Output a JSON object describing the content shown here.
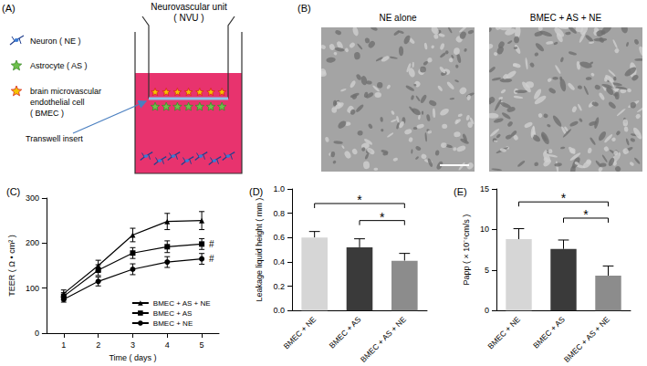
{
  "panel_a": {
    "label": "(A)",
    "title": [
      "Neurovascular unit",
      "( NVU )"
    ],
    "key": [
      {
        "icon": "neuron",
        "text": [
          "Neuron ( NE )"
        ]
      },
      {
        "icon": "astrocyte",
        "text": [
          "Astrocyte ( AS )"
        ]
      },
      {
        "icon": "bmec",
        "text": [
          "brain microvascular",
          "endothelial cell",
          "( BMEC )"
        ]
      }
    ],
    "insert_label": "Transwell insert"
  },
  "panel_b": {
    "label": "(B)",
    "images": [
      "NE alone",
      "BMEC + AS + NE"
    ]
  },
  "chart_data": [
    {
      "type": "line",
      "title": "(C)",
      "x_label": "Time ( days )",
      "y_label": "TEER ( Ω • cm² )",
      "categories": [
        "1",
        "2",
        "3",
        "4",
        "5"
      ],
      "series": [
        {
          "name": "BMEC + AS + NE",
          "marker": "triangle",
          "color": "#000000",
          "values": [
            88,
            150,
            218,
            248,
            250
          ],
          "errors": [
            8,
            12,
            15,
            18,
            20
          ]
        },
        {
          "name": "BMEC + AS",
          "marker": "square",
          "color": "#000000",
          "values": [
            82,
            140,
            178,
            192,
            198
          ],
          "errors": [
            8,
            12,
            12,
            13,
            12
          ]
        },
        {
          "name": "BMEC + NE",
          "marker": "circle",
          "color": "#000000",
          "values": [
            75,
            115,
            142,
            158,
            165
          ],
          "errors": [
            6,
            10,
            12,
            12,
            12
          ]
        }
      ],
      "ylim": [
        0,
        300
      ],
      "yticks": [
        0,
        100,
        200,
        300
      ],
      "grid": false,
      "legend": "lower right",
      "annotations": [
        {
          "text": "#",
          "series": "BMEC + AS",
          "category": "5"
        },
        {
          "text": "#",
          "series": "BMEC + NE",
          "category": "5"
        }
      ]
    },
    {
      "type": "bar",
      "title": "(D)",
      "y_label": "Leakage liquid height ( mm )",
      "categories": [
        "BMEC + NE",
        "BMEC + AS",
        "BMEC + AS + NE"
      ],
      "values": [
        0.6,
        0.52,
        0.41
      ],
      "errors": [
        0.05,
        0.07,
        0.06
      ],
      "colors": [
        "#d6d6d6",
        "#3a3a3a",
        "#8c8c8c"
      ],
      "ylim": [
        0,
        1
      ],
      "yticks": [
        {
          "value": 0,
          "label": "0.0"
        },
        {
          "value": 0.2,
          "label": "0.2"
        },
        {
          "value": 0.4,
          "label": "0.4"
        },
        {
          "value": 0.6,
          "label": "0.6"
        },
        {
          "value": 0.8,
          "label": "0.8"
        },
        {
          "value": 1,
          "label": "1.0"
        }
      ],
      "grid": false,
      "annotations": [
        {
          "text": "*",
          "between": [
            "BMEC + NE",
            "BMEC + AS + NE"
          ],
          "y": 0.88
        },
        {
          "text": "*",
          "between": [
            "BMEC + AS",
            "BMEC + AS + NE"
          ],
          "y": 0.74
        }
      ]
    },
    {
      "type": "bar",
      "title": "(E)",
      "y_label": "Papp ( × 10⁻⁶cm/s )",
      "categories": [
        "BMEC + NE",
        "BMEC + AS",
        "BMEC + AS + NE"
      ],
      "values": [
        8.8,
        7.6,
        4.3
      ],
      "errors": [
        1.3,
        1.1,
        1.2
      ],
      "colors": [
        "#d6d6d6",
        "#3a3a3a",
        "#8c8c8c"
      ],
      "ylim": [
        0,
        15
      ],
      "yticks": [
        0,
        5,
        10,
        15
      ],
      "grid": false,
      "annotations": [
        {
          "text": "*",
          "between": [
            "BMEC + NE",
            "BMEC + AS + NE"
          ],
          "y": 13.4
        },
        {
          "text": "*",
          "between": [
            "BMEC + AS",
            "BMEC + AS + NE"
          ],
          "y": 11.4
        }
      ]
    }
  ]
}
